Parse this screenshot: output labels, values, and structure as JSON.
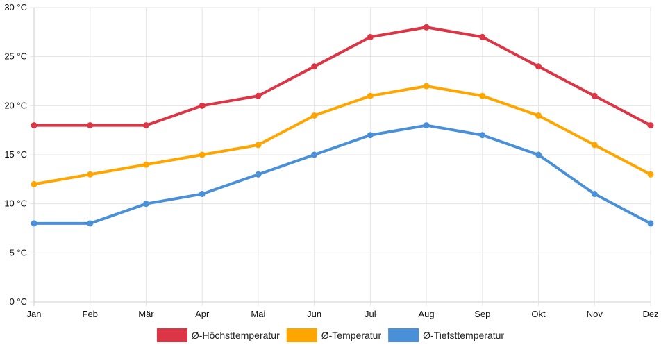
{
  "chart_data": {
    "type": "line",
    "title": "",
    "xlabel": "",
    "ylabel": "",
    "categories": [
      "Jan",
      "Feb",
      "Mär",
      "Apr",
      "Mai",
      "Jun",
      "Jul",
      "Aug",
      "Sep",
      "Okt",
      "Nov",
      "Dez"
    ],
    "ylim": [
      0,
      30
    ],
    "yticks": [
      0,
      5,
      10,
      15,
      20,
      25,
      30
    ],
    "y_unit": " °C",
    "y_tick_labels": [
      "0 °C",
      "5 °C",
      "10 °C",
      "15 °C",
      "20 °C",
      "25 °C",
      "30 °C"
    ],
    "grid": true,
    "legend_position": "bottom",
    "series": [
      {
        "name": "Ø-Höchsttemperatur",
        "color": "#dc3545",
        "values": [
          18,
          18,
          18,
          20,
          21,
          24,
          27,
          28,
          27,
          24,
          21,
          18
        ]
      },
      {
        "name": "Ø-Temperatur",
        "color": "#ffa500",
        "values": [
          12,
          13,
          14,
          15,
          16,
          19,
          21,
          22,
          21,
          19,
          16,
          13
        ]
      },
      {
        "name": "Ø-Tiefsttemperatur",
        "color": "#4a90d9",
        "values": [
          8,
          8,
          10,
          11,
          13,
          15,
          17,
          18,
          17,
          15,
          11,
          8
        ]
      }
    ]
  }
}
